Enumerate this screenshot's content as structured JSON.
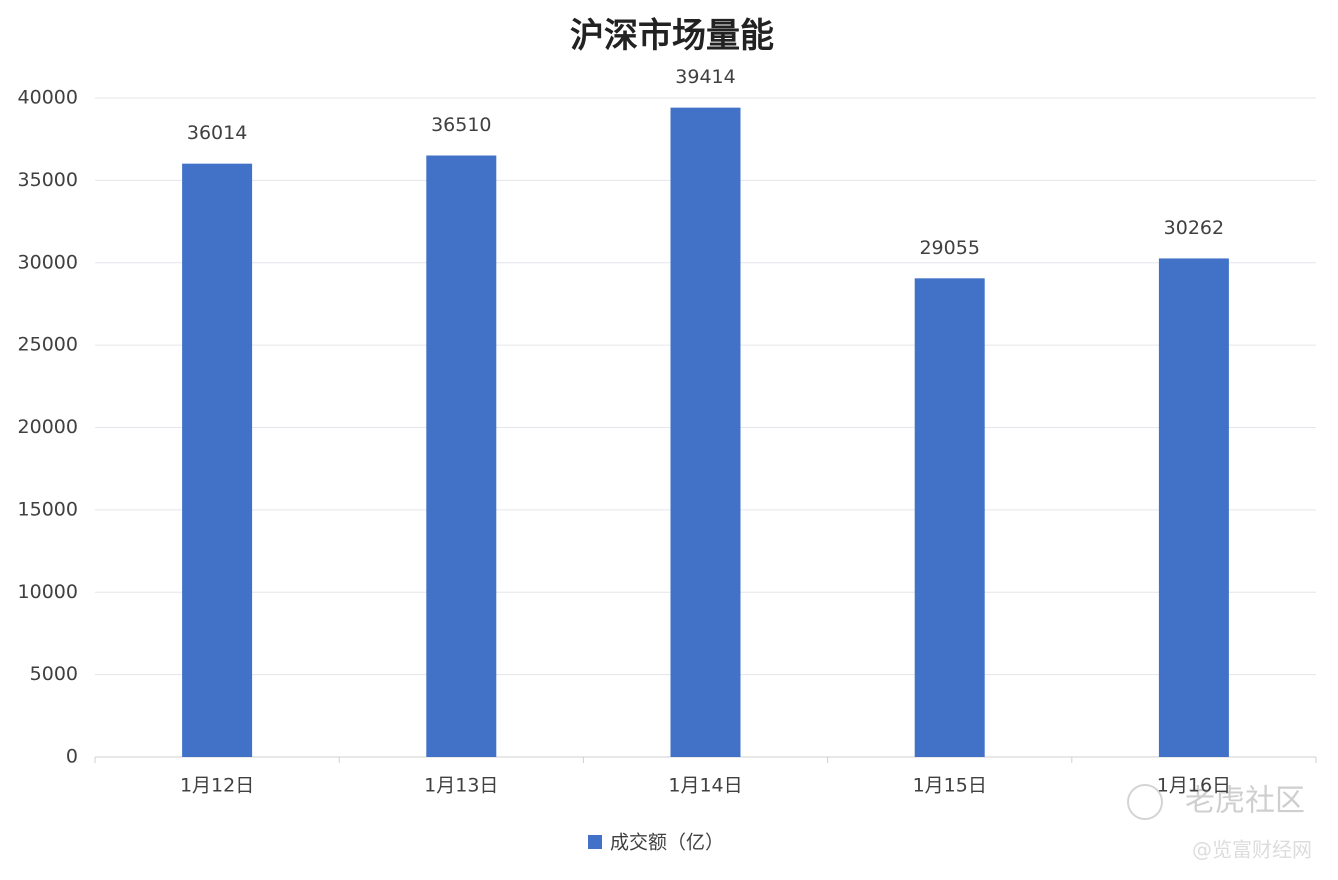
{
  "chart_data": {
    "type": "bar",
    "title": "沪深市场量能",
    "categories": [
      "1月12日",
      "1月13日",
      "1月14日",
      "1月15日",
      "1月16日"
    ],
    "series": [
      {
        "name": "成交额（亿）",
        "color": "#4272c8",
        "values": [
          36014,
          36510,
          39414,
          29055,
          30262
        ]
      }
    ],
    "ylim": [
      0,
      40000
    ],
    "yticks": [
      0,
      5000,
      10000,
      15000,
      20000,
      25000,
      30000,
      35000,
      40000
    ],
    "grid": true,
    "legend": "bottom",
    "data_labels": true,
    "watermarks": [
      "老虎社区",
      "@览富财经网"
    ]
  }
}
